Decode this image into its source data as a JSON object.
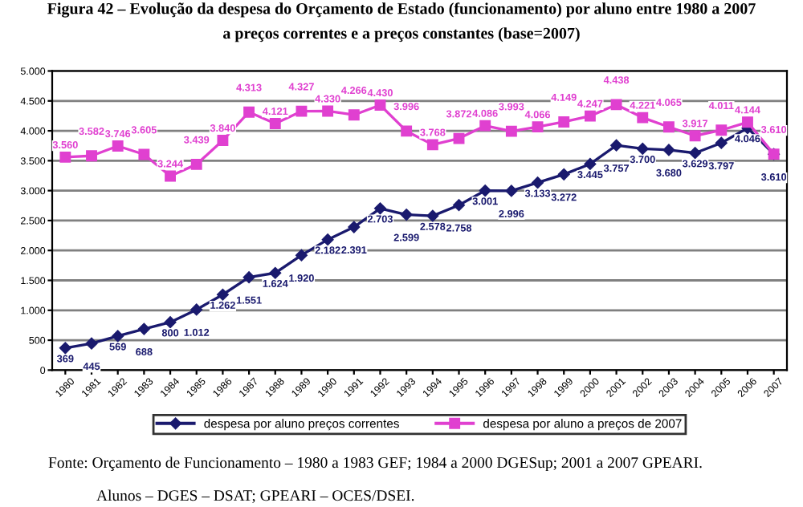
{
  "chart_data": {
    "type": "line",
    "title": "Figura 42 – Evolução da despesa do Orçamento de Estado (funcionamento) por aluno entre 1980 a 2007\na preços correntes e a preços constantes (base=2007)",
    "categories": [
      "1980",
      "1981",
      "1982",
      "1983",
      "1984",
      "1985",
      "1986",
      "1987",
      "1988",
      "1989",
      "1990",
      "1991",
      "1992",
      "1993",
      "1994",
      "1995",
      "1996",
      "1997",
      "1998",
      "1999",
      "2000",
      "2001",
      "2002",
      "2003",
      "2004",
      "2005",
      "2006",
      "2007"
    ],
    "series": [
      {
        "name": "despesa por aluno preços correntes",
        "color": "#1a1a6e",
        "marker": "diamond",
        "values": [
          369,
          445,
          569,
          688,
          800,
          1012,
          1262,
          1551,
          1624,
          1920,
          2182,
          2391,
          2703,
          2599,
          2578,
          2758,
          3001,
          2996,
          3133,
          3272,
          3445,
          3757,
          3700,
          3680,
          3629,
          3797,
          4046,
          3610
        ],
        "value_labels": [
          "369",
          "445",
          "569",
          "688",
          "800",
          "1.012",
          "1.262",
          "1.551",
          "1.624",
          "1.920",
          "2.182",
          "2.391",
          "2.703",
          "2.599",
          "2.578",
          "2.758",
          "3.001",
          "2.996",
          "3.133",
          "3.272",
          "3.445",
          "3.757",
          "3.700",
          "3.680",
          "3.629",
          "3.797",
          "4.046",
          "3.610"
        ]
      },
      {
        "name": "despesa por aluno a preços de 2007",
        "color": "#e040d0",
        "marker": "square",
        "values": [
          3560,
          3582,
          3746,
          3605,
          3244,
          3439,
          3840,
          4313,
          4121,
          4327,
          4330,
          4266,
          4430,
          3996,
          3768,
          3872,
          4086,
          3993,
          4066,
          4149,
          4247,
          4438,
          4221,
          4065,
          3917,
          4011,
          4144,
          3610
        ],
        "value_labels": [
          "3.560",
          "3.582",
          "3.746",
          "3.605",
          "3.244",
          "3.439",
          "3.840",
          "4.313",
          "4.121",
          "4.327",
          "4.330",
          "4.266",
          "4.430",
          "3.996",
          "3.768",
          "3.872",
          "4.086",
          "3.993",
          "4.066",
          "4.149",
          "4.247",
          "4.438",
          "4.221",
          "4.065",
          "3.917",
          "4.011",
          "4.144",
          "3.610"
        ]
      }
    ],
    "ylim": [
      0,
      5000
    ],
    "yticks": [
      {
        "value": 0,
        "label": "0"
      },
      {
        "value": 500,
        "label": "500"
      },
      {
        "value": 1000,
        "label": "1.000"
      },
      {
        "value": 1500,
        "label": "1.500"
      },
      {
        "value": 2000,
        "label": "2.000"
      },
      {
        "value": 2500,
        "label": "2.500"
      },
      {
        "value": 3000,
        "label": "3.000"
      },
      {
        "value": 3500,
        "label": "3.500"
      },
      {
        "value": 4000,
        "label": "4.000"
      },
      {
        "value": 4500,
        "label": "4.500"
      },
      {
        "value": 5000,
        "label": "5.000"
      }
    ],
    "grid": "y",
    "legend": "bottom",
    "line_style": "solid",
    "annotations": [
      "Fonte: Orçamento de Funcionamento – 1980 a 1983 GEF; 1984 a 2000 DGESup; 2001 a 2007 GPEARI.",
      "Alunos – DGES – DSAT; GPEARI – OCES/DSEI."
    ]
  }
}
